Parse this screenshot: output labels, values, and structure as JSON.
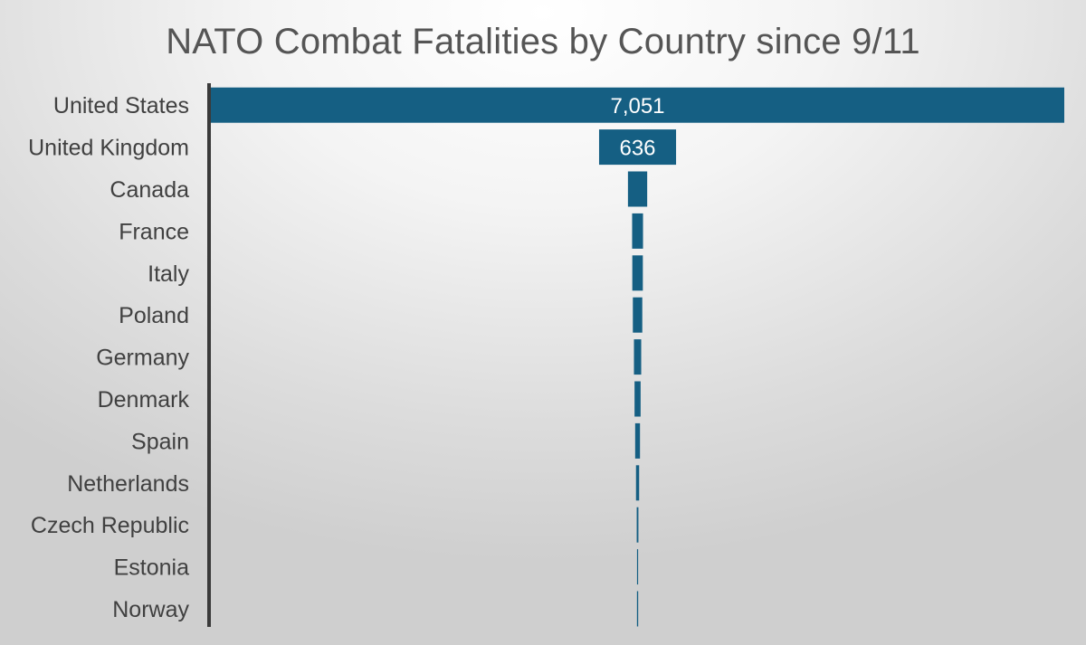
{
  "chart_data": {
    "type": "bar",
    "orientation": "horizontal",
    "title": "NATO Combat Fatalities by Country since 9/11",
    "categories": [
      "United States",
      "United Kingdom",
      "Canada",
      "France",
      "Italy",
      "Poland",
      "Germany",
      "Denmark",
      "Spain",
      "Netherlands",
      "Czech Republic",
      "Estonia",
      "Norway"
    ],
    "values": [
      7051,
      636,
      159,
      90,
      87,
      78,
      60,
      50,
      40,
      26,
      14,
      9,
      10
    ],
    "data_labels": [
      "7,051",
      "636",
      "",
      "",
      "",
      "",
      "",
      "",
      "",
      "",
      "",
      "",
      ""
    ],
    "bar_alignment": "centered",
    "xlabel": "",
    "ylabel": "",
    "grid": false,
    "legend": "none",
    "colors": {
      "bar": "#155f83",
      "axis": "#3a3a3a"
    }
  }
}
